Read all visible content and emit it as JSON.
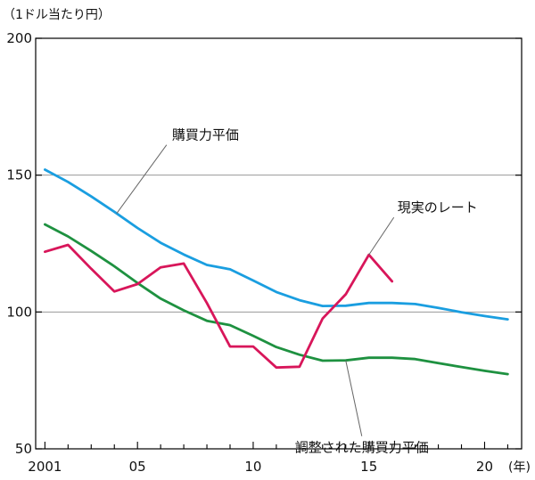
{
  "chart_data": {
    "type": "line",
    "y_unit_label": "（1ドル当たり円）",
    "x_unit_label": "(年)",
    "ylim": [
      50,
      200
    ],
    "xlim": [
      2000.6,
      2021.6
    ],
    "y_ticks": [
      {
        "value": 200,
        "label": "200"
      },
      {
        "value": 150,
        "label": "150"
      },
      {
        "value": 100,
        "label": "100"
      },
      {
        "value": 50,
        "label": "50"
      }
    ],
    "x_ticks": [
      {
        "value": 2001,
        "label": "2001"
      },
      {
        "value": 2005,
        "label": "05"
      },
      {
        "value": 2010,
        "label": "10"
      },
      {
        "value": 2015,
        "label": "15"
      },
      {
        "value": 2020,
        "label": "20"
      }
    ],
    "gridlines_y": [
      150,
      100
    ],
    "series": [
      {
        "name": "購買力平価",
        "color": "#1a9ee0",
        "x": [
          2001,
          2002,
          2003,
          2004,
          2005,
          2006,
          2007,
          2008,
          2009,
          2010,
          2011,
          2012,
          2013,
          2014,
          2015,
          2016,
          2017,
          2018,
          2019,
          2020,
          2021
        ],
        "values": [
          152,
          147.5,
          142.2,
          136.6,
          130.7,
          125.3,
          121,
          117.2,
          115.6,
          111.5,
          107.3,
          104.3,
          102.2,
          102.3,
          103.3,
          103.3,
          102.9,
          101.5,
          99.9,
          98.5,
          97.3
        ]
      },
      {
        "name": "調整された購買力平価",
        "color": "#1e9140",
        "x": [
          2001,
          2002,
          2003,
          2004,
          2005,
          2006,
          2007,
          2008,
          2009,
          2010,
          2011,
          2012,
          2013,
          2014,
          2015,
          2016,
          2017,
          2018,
          2019,
          2020,
          2021
        ],
        "values": [
          132,
          127.6,
          122.3,
          116.7,
          110.6,
          104.9,
          100.6,
          96.8,
          95.2,
          91.3,
          87.2,
          84.4,
          82.2,
          82.3,
          83.3,
          83.3,
          82.8,
          81.3,
          79.9,
          78.5,
          77.3
        ]
      },
      {
        "name": "現実のレート",
        "color": "#d8165a",
        "x": [
          2001,
          2002,
          2003,
          2004,
          2005,
          2006,
          2007,
          2008,
          2009,
          2010,
          2011,
          2012,
          2013,
          2014,
          2015,
          2016
        ],
        "values": [
          122,
          124.5,
          115.8,
          107.5,
          110.2,
          116.3,
          117.7,
          103.3,
          87.4,
          87.4,
          79.7,
          80,
          97.6,
          106.5,
          120.9,
          111.2
        ]
      }
    ],
    "annotations": [
      {
        "text": "購買力平価",
        "series": "購買力平価",
        "point_x": 2004.1
      },
      {
        "text": "現実のレート",
        "series": "現実のレート",
        "point_x": 2015
      },
      {
        "text": "調整された購買力平価",
        "series": "調整された購買力平価",
        "point_x": 2014
      }
    ]
  }
}
